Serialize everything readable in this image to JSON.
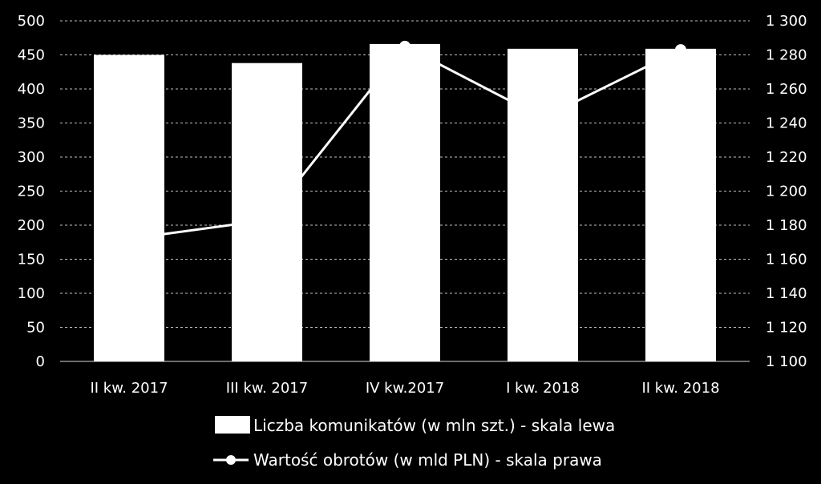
{
  "chart_data": {
    "type": "bar",
    "categories": [
      "II kw. 2017",
      "III kw. 2017",
      "IV kw.2017",
      "I kw. 2018",
      "II kw. 2018"
    ],
    "series": [
      {
        "name": "Liczba komunikatów (w mln szt.) - skala lewa",
        "type": "bar",
        "axis": "left",
        "values": [
          450,
          438,
          466,
          459,
          459
        ]
      },
      {
        "name": "Wartość obrotów (w mld PLN) - skala prawa",
        "type": "line",
        "axis": "right",
        "values": [
          1172,
          1183,
          1285,
          1243,
          1283
        ]
      }
    ],
    "yleft": {
      "min": 0,
      "max": 500,
      "step": 50,
      "ticks": [
        "0",
        "50",
        "100",
        "150",
        "200",
        "250",
        "300",
        "350",
        "400",
        "450",
        "500"
      ]
    },
    "yright": {
      "min": 1100,
      "max": 1300,
      "step": 20,
      "ticks": [
        "1 100",
        "1 120",
        "1 140",
        "1 160",
        "1 180",
        "1 200",
        "1 220",
        "1 240",
        "1 260",
        "1 280",
        "1 300"
      ]
    },
    "grid": true,
    "legend": "bottom",
    "colors": {
      "background": "#000000",
      "bars": "#ffffff",
      "line": "#ffffff",
      "grid": "#bfbfbf",
      "text": "#ffffff"
    }
  }
}
